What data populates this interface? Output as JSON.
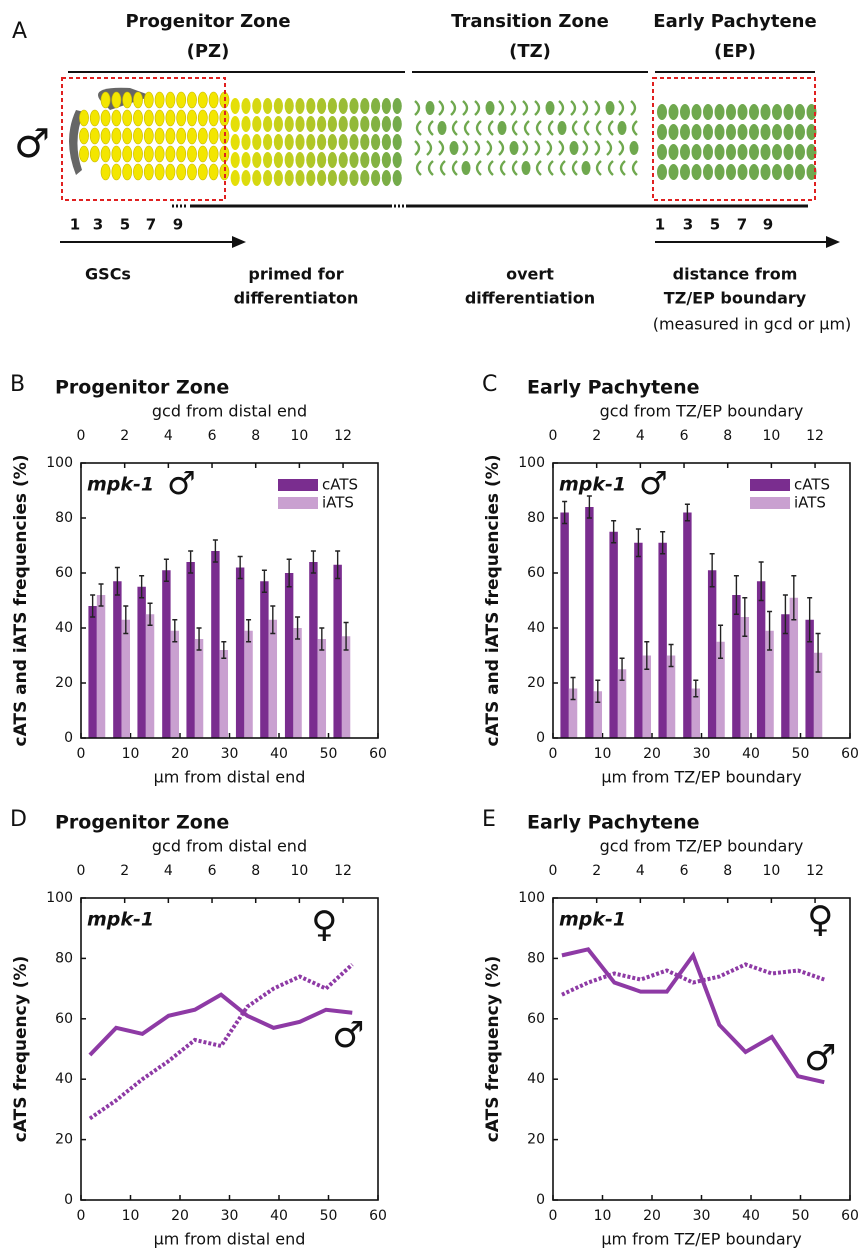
{
  "panel_a": {
    "label": "A",
    "zones": [
      {
        "name": "Progenitor Zone",
        "abbr": "(PZ)"
      },
      {
        "name": "Transition Zone",
        "abbr": "(TZ)"
      },
      {
        "name": "Early Pachytene",
        "abbr": "(EP)"
      }
    ],
    "symbol": "♂",
    "left_numbers": [
      1,
      3,
      5,
      7,
      9
    ],
    "right_numbers": [
      1,
      3,
      5,
      7,
      9
    ],
    "stages": [
      [
        "GSCs"
      ],
      [
        "primed for",
        "differentiaton"
      ],
      [
        "overt",
        "differentiation"
      ],
      [
        "distance from",
        "TZ/EP boundary"
      ]
    ],
    "note": "(measured in gcd or µm)"
  },
  "chart_data": [
    {
      "type": "bar",
      "panel_label": "B",
      "title": "Progenitor Zone",
      "x_label": "µm from distal end",
      "x2_label": "gcd from distal end",
      "y_label": "cATS and iATS frequencies (%)",
      "annotation": "mpk-1",
      "symbol": "♂",
      "x": [
        3.2,
        8.2,
        13.1,
        18.1,
        23,
        28,
        33,
        37.9,
        42.9,
        47.8,
        52.7
      ],
      "series": [
        {
          "name": "cATS",
          "color": "#7a2d8f",
          "values": [
            48,
            57,
            55,
            61,
            64,
            68,
            62,
            57,
            60,
            64,
            63
          ],
          "errors": [
            4,
            5,
            4,
            4,
            4,
            4,
            4,
            4,
            5,
            4,
            5
          ]
        },
        {
          "name": "iATS",
          "color": "#c9a0d0",
          "values": [
            52,
            43,
            45,
            39,
            36,
            32,
            39,
            43,
            40,
            36,
            37
          ],
          "errors": [
            4,
            5,
            4,
            4,
            4,
            3,
            4,
            5,
            4,
            4,
            5
          ]
        }
      ],
      "xlim": [
        0,
        60
      ],
      "xticks": [
        0,
        10,
        20,
        30,
        40,
        50,
        60
      ],
      "x2lim": [
        0,
        13.6
      ],
      "x2ticks": [
        0,
        2,
        4,
        6,
        8,
        10,
        12
      ],
      "ylim": [
        0,
        100
      ],
      "yticks": [
        0,
        20,
        40,
        60,
        80,
        100
      ],
      "legend": "upper right"
    },
    {
      "type": "bar",
      "panel_label": "C",
      "title": "Early Pachytene",
      "x_label": "µm from TZ/EP boundary",
      "x2_label": "gcd from TZ/EP boundary",
      "y_label": "cATS and iATS frequencies (%)",
      "annotation": "mpk-1",
      "symbol": "♂",
      "x": [
        3.2,
        8.2,
        13.1,
        18.1,
        23,
        28,
        33,
        37.9,
        42.9,
        47.8,
        52.7
      ],
      "series": [
        {
          "name": "cATS",
          "color": "#7a2d8f",
          "values": [
            82,
            84,
            75,
            71,
            71,
            82,
            61,
            52,
            57,
            45,
            43
          ],
          "errors": [
            4,
            4,
            4,
            5,
            4,
            3,
            6,
            7,
            7,
            7,
            8
          ]
        },
        {
          "name": "iATS",
          "color": "#c9a0d0",
          "values": [
            18,
            17,
            25,
            30,
            30,
            18,
            35,
            44,
            39,
            51,
            31
          ],
          "errors": [
            4,
            4,
            4,
            5,
            4,
            3,
            6,
            7,
            7,
            8,
            7
          ]
        }
      ],
      "xlim": [
        0,
        60
      ],
      "xticks": [
        0,
        10,
        20,
        30,
        40,
        50,
        60
      ],
      "x2lim": [
        0,
        13.6
      ],
      "x2ticks": [
        0,
        2,
        4,
        6,
        8,
        10,
        12
      ],
      "ylim": [
        0,
        100
      ],
      "yticks": [
        0,
        20,
        40,
        60,
        80,
        100
      ],
      "legend": "upper right"
    },
    {
      "type": "line",
      "panel_label": "D",
      "title": "Progenitor Zone",
      "x_label": "µm from distal end",
      "x2_label": "gcd from distal end",
      "y_label": "cATS frequency (%)",
      "annotation": "mpk-1",
      "x": [
        1.8,
        7.1,
        12.4,
        17.7,
        23,
        28.3,
        33.6,
        38.9,
        44.2,
        49.5,
        54.8
      ],
      "series": [
        {
          "name": "♂",
          "color": "#8e3aa5",
          "style": "solid",
          "values": [
            48,
            57,
            55,
            61,
            63,
            68,
            61,
            57,
            59,
            63,
            62
          ]
        },
        {
          "name": "♀",
          "color": "#8e3aa5",
          "style": "dotted",
          "values": [
            27,
            33,
            40,
            46,
            53,
            51,
            64,
            70,
            74,
            70,
            78
          ]
        }
      ],
      "xlim": [
        0,
        60
      ],
      "xticks": [
        0,
        10,
        20,
        30,
        40,
        50,
        60
      ],
      "x2lim": [
        0,
        13.6
      ],
      "x2ticks": [
        0,
        2,
        4,
        6,
        8,
        10,
        12
      ],
      "ylim": [
        0,
        100
      ],
      "yticks": [
        0,
        20,
        40,
        60,
        80,
        100
      ]
    },
    {
      "type": "line",
      "panel_label": "E",
      "title": "Early Pachytene",
      "x_label": "µm from TZ/EP boundary",
      "x2_label": "gcd from TZ/EP boundary",
      "y_label": "cATS frequency (%)",
      "annotation": "mpk-1",
      "x": [
        1.8,
        7.1,
        12.4,
        17.7,
        23,
        28.3,
        33.6,
        38.9,
        44.2,
        49.5,
        54.8
      ],
      "series": [
        {
          "name": "♂",
          "color": "#8e3aa5",
          "style": "solid",
          "values": [
            81,
            83,
            72,
            69,
            69,
            81,
            58,
            49,
            54,
            41,
            39
          ]
        },
        {
          "name": "♀",
          "color": "#8e3aa5",
          "style": "dotted",
          "values": [
            68,
            72,
            75,
            73,
            76,
            72,
            74,
            78,
            75,
            76,
            73
          ]
        }
      ],
      "xlim": [
        0,
        60
      ],
      "xticks": [
        0,
        10,
        20,
        30,
        40,
        50,
        60
      ],
      "x2lim": [
        0,
        13.6
      ],
      "x2ticks": [
        0,
        2,
        4,
        6,
        8,
        10,
        12
      ],
      "ylim": [
        0,
        100
      ],
      "yticks": [
        0,
        20,
        40,
        60,
        80,
        100
      ]
    }
  ]
}
